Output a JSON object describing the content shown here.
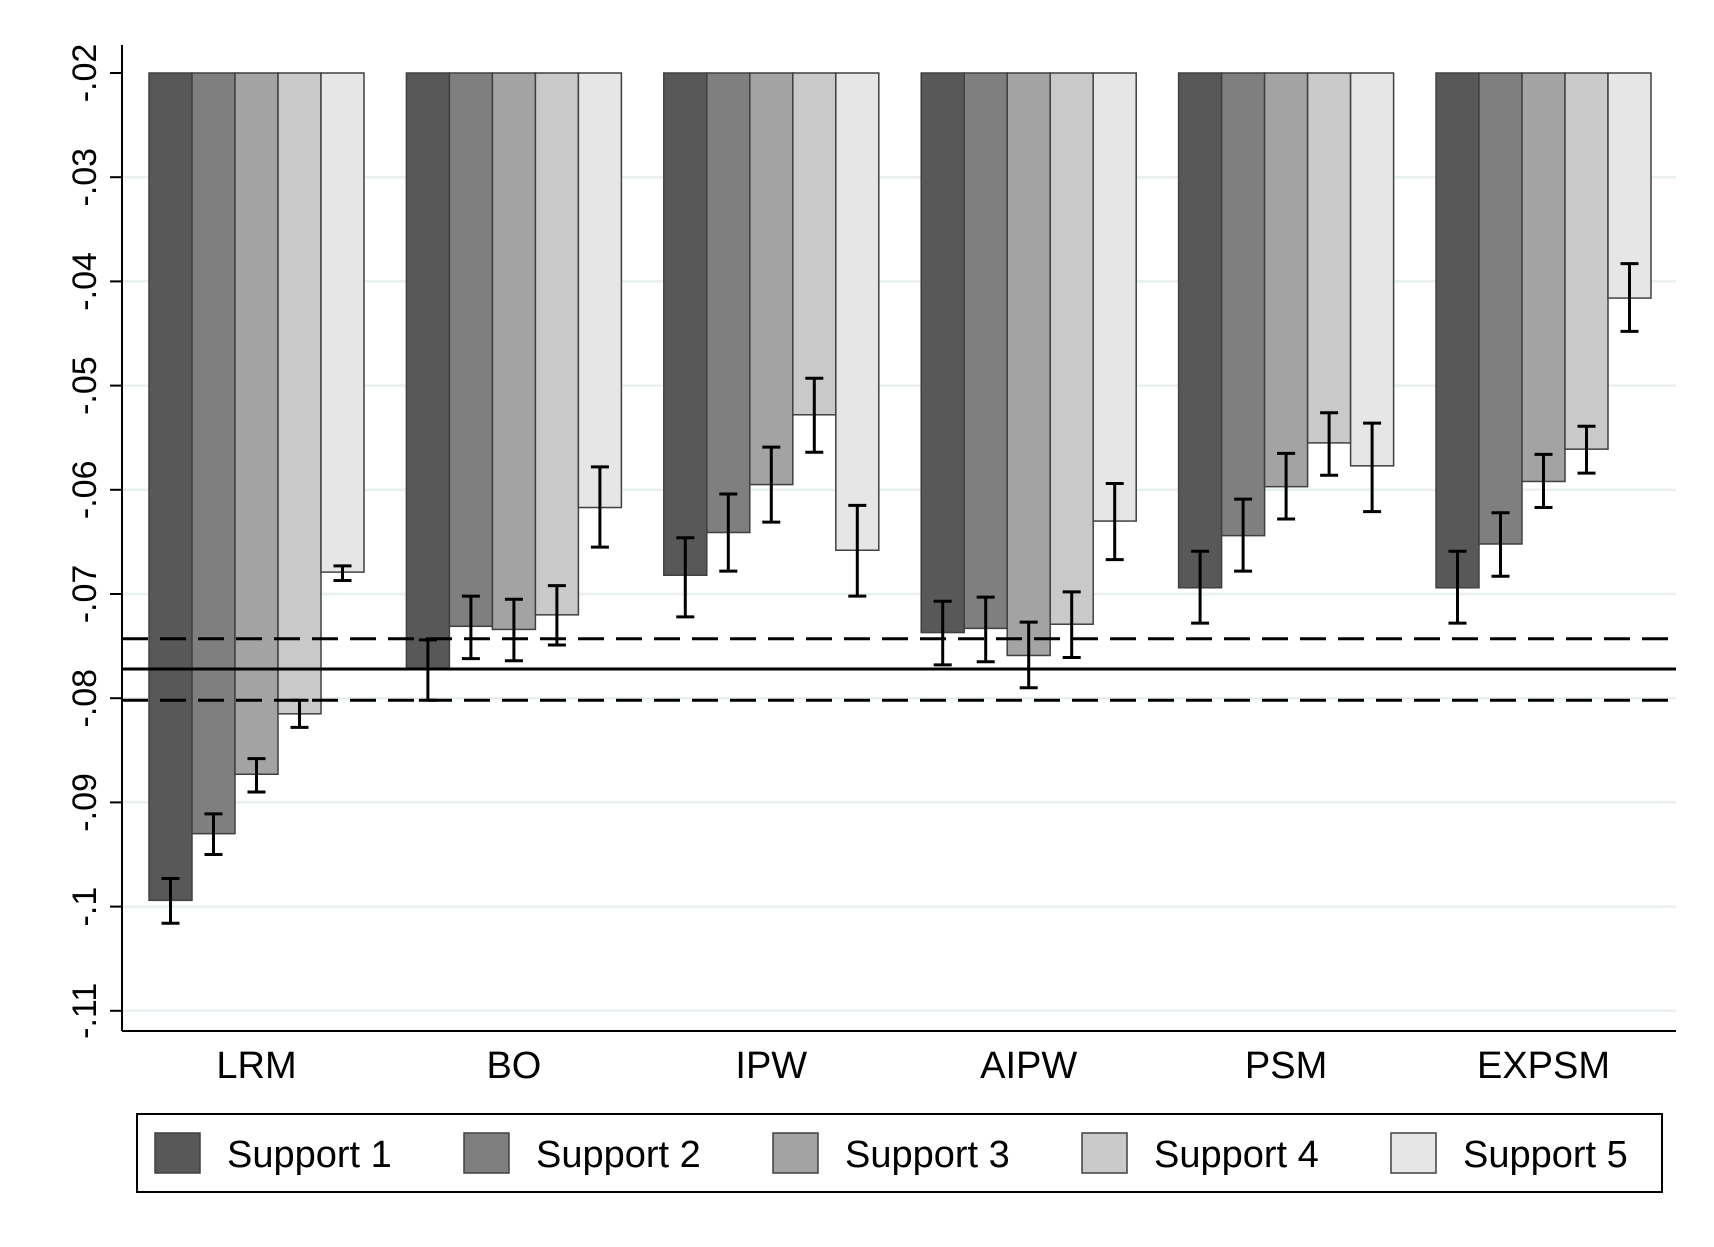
{
  "chart_data": {
    "type": "bar",
    "title": "",
    "xlabel": "",
    "ylabel": "",
    "ylim": [
      -0.11,
      -0.02
    ],
    "baseline": -0.02,
    "y_ticks": [
      -0.02,
      -0.03,
      -0.04,
      -0.05,
      -0.06,
      -0.07,
      -0.08,
      -0.09,
      -0.1,
      -0.11
    ],
    "y_tick_labels": [
      "-.02",
      "-.03",
      "-.04",
      "-.05",
      "-.06",
      "-.07",
      "-.08",
      "-.09",
      "-.1",
      "-.11"
    ],
    "grid": true,
    "legend_position": "bottom",
    "categories": [
      "LRM",
      "BO",
      "IPW",
      "AIPW",
      "PSM",
      "EXPSM"
    ],
    "series": [
      {
        "name": "Support 1",
        "color": "#585858",
        "values": [
          -0.0994,
          -0.0772,
          -0.0682,
          -0.0737,
          -0.0694,
          -0.0694
        ],
        "ci_low": [
          -0.1016,
          -0.0802,
          -0.0722,
          -0.0768,
          -0.0728,
          -0.0728
        ],
        "ci_high": [
          -0.0973,
          -0.0744,
          -0.0646,
          -0.0707,
          -0.0659,
          -0.0659
        ]
      },
      {
        "name": "Support 2",
        "color": "#7f7f7f",
        "values": [
          -0.093,
          -0.0731,
          -0.0641,
          -0.0733,
          -0.0644,
          -0.0652
        ],
        "ci_low": [
          -0.095,
          -0.0762,
          -0.0678,
          -0.0765,
          -0.0678,
          -0.0683
        ],
        "ci_high": [
          -0.0911,
          -0.0702,
          -0.0604,
          -0.0703,
          -0.0609,
          -0.0622
        ]
      },
      {
        "name": "Support 3",
        "color": "#a3a3a3",
        "values": [
          -0.0873,
          -0.0734,
          -0.0595,
          -0.0759,
          -0.0597,
          -0.0592
        ],
        "ci_low": [
          -0.089,
          -0.0764,
          -0.0631,
          -0.079,
          -0.0628,
          -0.0617
        ],
        "ci_high": [
          -0.0858,
          -0.0705,
          -0.0559,
          -0.0727,
          -0.0565,
          -0.0566
        ]
      },
      {
        "name": "Support 4",
        "color": "#c9c9c9",
        "values": [
          -0.0815,
          -0.072,
          -0.0528,
          -0.0729,
          -0.0555,
          -0.0561
        ],
        "ci_low": [
          -0.0828,
          -0.0749,
          -0.0564,
          -0.0761,
          -0.0586,
          -0.0584
        ],
        "ci_high": [
          -0.0802,
          -0.0692,
          -0.0493,
          -0.0698,
          -0.0526,
          -0.0539
        ]
      },
      {
        "name": "Support 5",
        "color": "#e6e6e6",
        "values": [
          -0.0679,
          -0.0617,
          -0.0658,
          -0.063,
          -0.0577,
          -0.0416
        ],
        "ci_low": [
          -0.0687,
          -0.0655,
          -0.0702,
          -0.0667,
          -0.0621,
          -0.0448
        ],
        "ci_high": [
          -0.0673,
          -0.0578,
          -0.0615,
          -0.0594,
          -0.0536,
          -0.0383
        ]
      }
    ],
    "reference_lines": [
      {
        "value": -0.0772,
        "style": "solid"
      },
      {
        "value": -0.0743,
        "style": "dashed"
      },
      {
        "value": -0.0802,
        "style": "dashed"
      }
    ]
  }
}
